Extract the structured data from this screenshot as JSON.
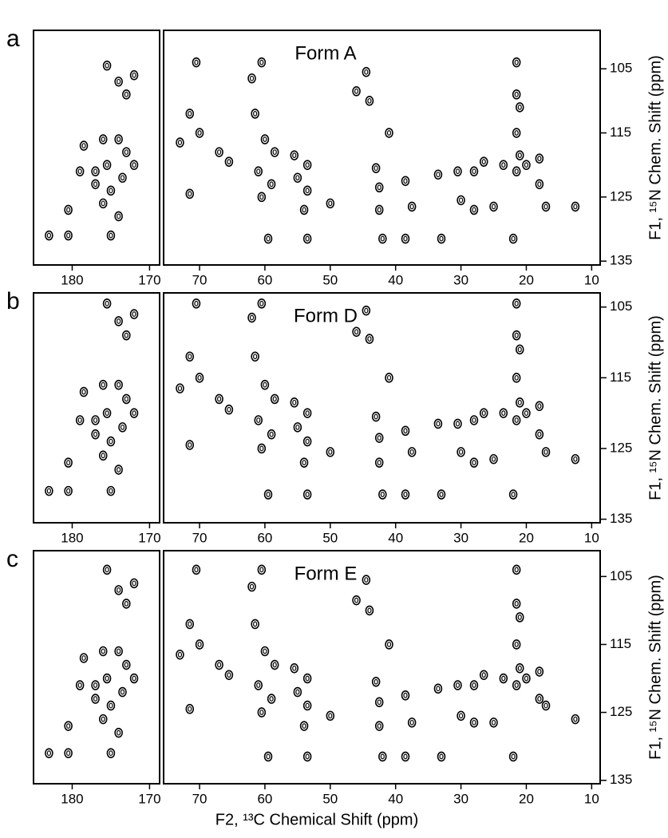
{
  "chart_data": [
    {
      "type": "scatter",
      "panel_label": "a",
      "title": "Form A",
      "y_label": "F1, ¹⁵N Chem. Shift (ppm)",
      "x_segments": [
        {
          "xlim": [
            185,
            168.7
          ],
          "xticks": [
            180,
            170
          ]
        },
        {
          "xlim": [
            75.5,
            8.7
          ],
          "xticks": [
            70,
            60,
            50,
            40,
            30,
            20,
            10
          ]
        }
      ],
      "ylim": [
        99,
        135.6
      ],
      "yticks": [
        105,
        115,
        125,
        135
      ],
      "x": [
        175.5,
        173,
        174,
        172,
        178.5,
        176,
        174,
        179,
        177,
        175.5,
        173,
        177,
        175,
        176,
        173.5,
        172,
        180.5,
        174,
        183,
        180.5,
        175,
        70.5,
        60.5,
        62,
        46,
        44.5,
        44,
        71.5,
        61.5,
        70,
        73,
        67,
        65.5,
        60,
        58.5,
        55.5,
        53.5,
        55,
        53.5,
        61,
        59,
        71.5,
        60.5,
        50,
        54,
        41,
        43,
        42.5,
        42.5,
        38.5,
        37.5,
        33.5,
        30.5,
        28,
        26.5,
        23.5,
        30,
        28,
        25,
        21.5,
        21.5,
        21,
        21.5,
        21,
        21.5,
        20,
        18,
        18,
        17,
        12.5,
        42,
        38.5,
        33,
        22,
        59.5,
        53.5
      ],
      "y": [
        104.5,
        109,
        107,
        106,
        117,
        116,
        116,
        121,
        121,
        120,
        118,
        123,
        124,
        126,
        122,
        120,
        127,
        128,
        131,
        131,
        131,
        104,
        104,
        106.5,
        108.5,
        105.5,
        110,
        112,
        112,
        115,
        116.5,
        118,
        119.5,
        116,
        118,
        118.5,
        120,
        122,
        124,
        121,
        123,
        124.5,
        125,
        126,
        127,
        115,
        120.5,
        123.5,
        127,
        122.5,
        126.5,
        121.5,
        121,
        121,
        119.5,
        120,
        125.5,
        127,
        126.5,
        104,
        109,
        111,
        115,
        118.5,
        121,
        120,
        119,
        123,
        126.5,
        126.5,
        131.5,
        131.5,
        131.5,
        131.5,
        131.5,
        131.5
      ]
    },
    {
      "type": "scatter",
      "panel_label": "b",
      "title": "Form D",
      "y_label": "F1, ¹⁵N Chem. Shift (ppm)",
      "x_segments": [
        {
          "xlim": [
            185,
            168.7
          ],
          "xticks": [
            180,
            170
          ]
        },
        {
          "xlim": [
            75.5,
            8.7
          ],
          "xticks": [
            70,
            60,
            50,
            40,
            30,
            20,
            10
          ]
        }
      ],
      "ylim": [
        103,
        135.5
      ],
      "yticks": [
        105,
        115,
        125,
        135
      ],
      "x": [
        175.5,
        173,
        174,
        172,
        178.5,
        176,
        174,
        179,
        177,
        175.5,
        173,
        177,
        175,
        176,
        173.5,
        172,
        180.5,
        174,
        183,
        180.5,
        175,
        70.5,
        60.5,
        62,
        46,
        44.5,
        44,
        71.5,
        61.5,
        70,
        73,
        67,
        65.5,
        60,
        58.5,
        55.5,
        53.5,
        55,
        53.5,
        61,
        59,
        71.5,
        60.5,
        50,
        54,
        41,
        43,
        42.5,
        42.5,
        38.5,
        37.5,
        33.5,
        30.5,
        28,
        26.5,
        23.5,
        30,
        28,
        25,
        21.5,
        21.5,
        21,
        21.5,
        21,
        21.5,
        20,
        18,
        18,
        17,
        12.5,
        42,
        38.5,
        33,
        22,
        59.5,
        53.5
      ],
      "y": [
        104.5,
        109,
        107,
        106,
        117,
        116,
        116,
        121,
        121,
        120,
        118,
        123,
        124,
        126,
        122,
        120,
        127,
        128,
        131,
        131,
        131,
        104.5,
        104.5,
        106.5,
        108.5,
        105.5,
        109.5,
        112,
        112,
        115,
        116.5,
        118,
        119.5,
        116,
        118,
        118.5,
        120,
        122,
        124,
        121,
        123,
        124.5,
        125,
        125.5,
        127,
        115,
        120.5,
        123.5,
        127,
        122.5,
        125.5,
        121.5,
        121.5,
        121,
        120,
        120,
        125.5,
        127,
        126.5,
        104.5,
        109,
        111,
        115,
        118.5,
        121,
        120,
        119,
        123,
        125.5,
        126.5,
        131.5,
        131.5,
        131.5,
        131.5,
        131.5,
        131.5
      ]
    },
    {
      "type": "scatter",
      "panel_label": "c",
      "title": "Form E",
      "y_label": "F1, ¹⁵N Chem. Shift (ppm)",
      "x_label": "F2, ¹³C Chemical Shift (ppm)",
      "x_segments": [
        {
          "xlim": [
            185,
            168.7
          ],
          "xticks": [
            180,
            170
          ]
        },
        {
          "xlim": [
            75.5,
            8.7
          ],
          "xticks": [
            70,
            60,
            50,
            40,
            30,
            20,
            10
          ]
        }
      ],
      "ylim": [
        101.2,
        135.5
      ],
      "yticks": [
        105,
        115,
        125,
        135
      ],
      "x": [
        175.5,
        173,
        174,
        172,
        178.5,
        176,
        174,
        179,
        177,
        175.5,
        173,
        177,
        175,
        176,
        173.5,
        172,
        180.5,
        174,
        183,
        180.5,
        175,
        70.5,
        60.5,
        62,
        46,
        44.5,
        44,
        71.5,
        61.5,
        70,
        73,
        67,
        65.5,
        60,
        58.5,
        55.5,
        53.5,
        55,
        53.5,
        61,
        59,
        71.5,
        60.5,
        50,
        54,
        41,
        43,
        42.5,
        42.5,
        38.5,
        37.5,
        33.5,
        30.5,
        28,
        26.5,
        23.5,
        30,
        28,
        25,
        21.5,
        21.5,
        21,
        21.5,
        21,
        21.5,
        20,
        18,
        18,
        17,
        12.5,
        42,
        38.5,
        33,
        22,
        59.5,
        53.5
      ],
      "y": [
        104,
        109,
        107,
        106,
        117,
        116,
        116,
        121,
        121,
        120,
        118,
        123,
        124,
        126,
        122,
        120,
        127,
        128,
        131,
        131,
        131,
        104,
        104,
        106.5,
        108.5,
        105.5,
        110,
        112,
        112,
        115,
        116.5,
        118,
        119.5,
        116,
        118,
        118.5,
        120,
        122,
        124,
        121,
        123,
        124.5,
        125,
        125.5,
        127,
        115,
        120.5,
        123.5,
        127,
        122.5,
        126.5,
        121.5,
        121,
        121,
        119.5,
        120,
        125.5,
        126.5,
        126.5,
        104,
        109,
        111,
        115,
        118.5,
        121,
        120,
        119,
        123,
        124,
        126,
        131.5,
        131.5,
        131.5,
        131.5,
        131.5,
        131.5
      ]
    }
  ]
}
